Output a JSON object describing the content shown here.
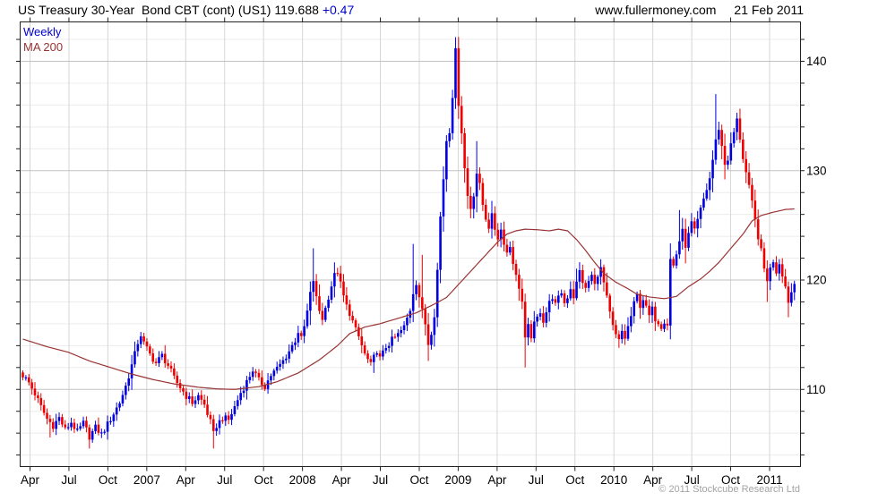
{
  "header": {
    "instrument": "US Treasury 30-Year  Bond CBT (cont) (US1)",
    "last_price": "119.688",
    "change": "+0.47",
    "website": "www.fullermoney.com",
    "date": "21 Feb 2011"
  },
  "legend": {
    "series1": "Weekly",
    "series2": "MA 200"
  },
  "footer": {
    "copyright": "© 2011 Stockcube Research Ltd"
  },
  "colors": {
    "up": "#0000e0",
    "down": "#ee0000",
    "ma": "#993333",
    "grid_minor": "#ececec",
    "grid_major": "#c2c2c2",
    "grid_vert": "#d6d6d6",
    "border": "#222222",
    "tick": "#222222",
    "label": "#000000",
    "change_text": "#0000cc",
    "copyright_text": "#a3a3a3"
  },
  "chart_data": {
    "type": "candlestick",
    "title": "US Treasury 30-Year Bond CBT (cont) (US1)",
    "timeframe": "Weekly",
    "overlay": "MA 200",
    "last_price": 119.688,
    "change": 0.47,
    "as_of": "21 Feb 2011",
    "x_labels": [
      "Apr",
      "Jul",
      "Oct",
      "2007",
      "Apr",
      "Jul",
      "Oct",
      "2008",
      "Apr",
      "Jul",
      "Oct",
      "2009",
      "Apr",
      "Jul",
      "Oct",
      "2010",
      "Apr",
      "Jul",
      "Oct",
      "2011"
    ],
    "y_ticks": [
      110,
      120,
      130,
      140
    ],
    "y_minor_step": 2,
    "ylim": [
      103.0,
      143.5
    ],
    "weeks_total": 256,
    "noise_amp": 0.32,
    "close_path": [
      [
        0,
        111.3
      ],
      [
        2,
        110.6
      ],
      [
        4,
        109.6
      ],
      [
        6,
        108.4
      ],
      [
        8,
        107.3
      ],
      [
        10,
        106.7
      ],
      [
        12,
        107.4
      ],
      [
        14,
        106.3
      ],
      [
        16,
        107.0
      ],
      [
        18,
        106.1
      ],
      [
        20,
        106.9
      ],
      [
        22,
        105.7
      ],
      [
        24,
        106.5
      ],
      [
        26,
        105.9
      ],
      [
        28,
        106.8
      ],
      [
        30,
        107.8
      ],
      [
        32,
        108.8
      ],
      [
        34,
        110.3
      ],
      [
        36,
        112.2
      ],
      [
        37,
        113.2
      ],
      [
        38,
        114.3
      ],
      [
        39,
        115.0
      ],
      [
        40,
        114.2
      ],
      [
        42,
        113.2
      ],
      [
        44,
        112.4
      ],
      [
        46,
        113.1
      ],
      [
        48,
        112.2
      ],
      [
        50,
        111.0
      ],
      [
        52,
        110.2
      ],
      [
        54,
        109.4
      ],
      [
        56,
        108.8
      ],
      [
        58,
        109.4
      ],
      [
        60,
        108.6
      ],
      [
        62,
        107.0
      ],
      [
        63,
        105.9
      ],
      [
        64,
        106.7
      ],
      [
        66,
        107.4
      ],
      [
        68,
        107.2
      ],
      [
        70,
        108.4
      ],
      [
        72,
        109.7
      ],
      [
        74,
        110.7
      ],
      [
        76,
        111.8
      ],
      [
        78,
        110.8
      ],
      [
        80,
        110.3
      ],
      [
        82,
        111.3
      ],
      [
        84,
        111.9
      ],
      [
        86,
        112.6
      ],
      [
        88,
        113.5
      ],
      [
        90,
        114.5
      ],
      [
        91,
        115.3
      ],
      [
        92,
        114.6
      ],
      [
        93,
        115.7
      ],
      [
        94,
        117.1
      ],
      [
        95,
        118.7
      ],
      [
        96,
        120.0
      ],
      [
        97,
        118.3
      ],
      [
        98,
        117.2
      ],
      [
        99,
        116.5
      ],
      [
        100,
        117.4
      ],
      [
        101,
        118.5
      ],
      [
        102,
        119.5
      ],
      [
        103,
        120.4
      ],
      [
        104,
        120.8
      ],
      [
        105,
        119.6
      ],
      [
        106,
        118.5
      ],
      [
        107,
        117.6
      ],
      [
        108,
        117.0
      ],
      [
        109,
        116.2
      ],
      [
        110,
        115.4
      ],
      [
        111,
        114.8
      ],
      [
        112,
        114.0
      ],
      [
        113,
        113.2
      ],
      [
        114,
        112.7
      ],
      [
        115,
        112.2
      ],
      [
        116,
        112.9
      ],
      [
        117,
        113.6
      ],
      [
        118,
        112.8
      ],
      [
        119,
        113.3
      ],
      [
        120,
        113.9
      ],
      [
        122,
        114.5
      ],
      [
        124,
        115.0
      ],
      [
        126,
        115.7
      ],
      [
        128,
        117.3
      ],
      [
        129,
        118.9
      ],
      [
        130,
        119.8
      ],
      [
        131,
        118.5
      ],
      [
        132,
        117.1
      ],
      [
        133,
        116.0
      ],
      [
        134,
        114.2
      ],
      [
        135,
        115.3
      ],
      [
        136,
        116.9
      ],
      [
        137,
        120.9
      ],
      [
        138,
        125.8
      ],
      [
        139,
        129.3
      ],
      [
        140,
        132.8
      ],
      [
        141,
        133.7
      ],
      [
        142,
        136.9
      ],
      [
        143,
        140.9
      ],
      [
        144,
        136.2
      ],
      [
        145,
        133.6
      ],
      [
        146,
        130.2
      ],
      [
        147,
        127.7
      ],
      [
        148,
        126.6
      ],
      [
        149,
        127.9
      ],
      [
        150,
        129.8
      ],
      [
        151,
        128.6
      ],
      [
        152,
        126.9
      ],
      [
        153,
        125.7
      ],
      [
        154,
        124.9
      ],
      [
        155,
        125.8
      ],
      [
        156,
        124.7
      ],
      [
        157,
        123.9
      ],
      [
        158,
        124.6
      ],
      [
        159,
        123.5
      ],
      [
        160,
        122.5
      ],
      [
        161,
        123.1
      ],
      [
        162,
        121.7
      ],
      [
        163,
        120.3
      ],
      [
        164,
        119.4
      ],
      [
        165,
        118.0
      ],
      [
        166,
        114.5
      ],
      [
        167,
        115.7
      ],
      [
        168,
        114.9
      ],
      [
        169,
        115.9
      ],
      [
        170,
        116.5
      ],
      [
        171,
        117.2
      ],
      [
        172,
        116.3
      ],
      [
        173,
        117.1
      ],
      [
        174,
        117.9
      ],
      [
        175,
        118.5
      ],
      [
        176,
        117.7
      ],
      [
        177,
        118.3
      ],
      [
        178,
        118.9
      ],
      [
        179,
        117.9
      ],
      [
        180,
        118.5
      ],
      [
        181,
        119.3
      ],
      [
        182,
        118.5
      ],
      [
        183,
        119.7
      ],
      [
        184,
        120.8
      ],
      [
        185,
        119.9
      ],
      [
        186,
        119.1
      ],
      [
        187,
        119.9
      ],
      [
        188,
        120.4
      ],
      [
        189,
        119.5
      ],
      [
        190,
        120.6
      ],
      [
        191,
        121.0
      ],
      [
        192,
        119.7
      ],
      [
        193,
        118.3
      ],
      [
        194,
        116.9
      ],
      [
        195,
        115.7
      ],
      [
        196,
        114.9
      ],
      [
        197,
        114.4
      ],
      [
        198,
        115.3
      ],
      [
        199,
        114.7
      ],
      [
        200,
        115.7
      ],
      [
        201,
        116.7
      ],
      [
        202,
        117.8
      ],
      [
        203,
        118.6
      ],
      [
        204,
        117.7
      ],
      [
        205,
        118.3
      ],
      [
        206,
        117.4
      ],
      [
        207,
        116.7
      ],
      [
        208,
        117.3
      ],
      [
        209,
        116.5
      ],
      [
        210,
        116.2
      ],
      [
        211,
        115.8
      ],
      [
        212,
        116.3
      ],
      [
        213,
        116.0
      ],
      [
        214,
        121.9
      ],
      [
        215,
        121.3
      ],
      [
        216,
        122.4
      ],
      [
        217,
        123.6
      ],
      [
        218,
        124.4
      ],
      [
        219,
        123.2
      ],
      [
        220,
        124.1
      ],
      [
        221,
        125.2
      ],
      [
        222,
        124.4
      ],
      [
        223,
        125.4
      ],
      [
        224,
        126.4
      ],
      [
        225,
        127.4
      ],
      [
        226,
        128.3
      ],
      [
        227,
        129.3
      ],
      [
        228,
        131.0
      ],
      [
        229,
        132.7
      ],
      [
        230,
        133.9
      ],
      [
        231,
        132.2
      ],
      [
        232,
        130.6
      ],
      [
        233,
        131.1
      ],
      [
        234,
        132.3
      ],
      [
        235,
        133.5
      ],
      [
        236,
        134.6
      ],
      [
        237,
        133.0
      ],
      [
        238,
        131.2
      ],
      [
        239,
        129.8
      ],
      [
        240,
        128.4
      ],
      [
        241,
        127.0
      ],
      [
        242,
        125.4
      ],
      [
        243,
        124.0
      ],
      [
        244,
        122.6
      ],
      [
        245,
        121.0
      ],
      [
        246,
        120.1
      ],
      [
        247,
        121.0
      ],
      [
        248,
        121.8
      ],
      [
        249,
        120.8
      ],
      [
        250,
        121.6
      ],
      [
        251,
        120.6
      ],
      [
        252,
        119.4
      ],
      [
        253,
        118.1
      ],
      [
        254,
        118.9
      ],
      [
        255,
        119.7
      ]
    ],
    "spike_highs": {
      "96": 122.9,
      "105": 121.3,
      "129": 123.3,
      "132": 122.3,
      "143": 142.2,
      "150": 132.7,
      "191": 121.4,
      "217": 126.4,
      "229": 137.0,
      "236": 135.3
    },
    "spike_lows": {
      "9": 105.6,
      "22": 105.0,
      "63": 104.6,
      "116": 111.5,
      "134": 112.6,
      "166": 112.0,
      "197": 113.8,
      "213": 115.4,
      "246": 118.0,
      "253": 116.6
    },
    "ma200_path": [
      [
        0,
        114.6
      ],
      [
        8,
        113.9
      ],
      [
        15,
        113.4
      ],
      [
        22,
        112.6
      ],
      [
        29,
        112.0
      ],
      [
        36,
        111.4
      ],
      [
        43,
        110.9
      ],
      [
        50,
        110.5
      ],
      [
        58,
        110.2
      ],
      [
        64,
        110.05
      ],
      [
        70,
        110.0
      ],
      [
        78,
        110.25
      ],
      [
        84,
        110.7
      ],
      [
        91,
        111.5
      ],
      [
        98,
        112.7
      ],
      [
        104,
        114.0
      ],
      [
        108,
        115.1
      ],
      [
        113,
        115.7
      ],
      [
        118,
        116.0
      ],
      [
        124,
        116.5
      ],
      [
        130,
        117.0
      ],
      [
        136,
        117.8
      ],
      [
        140,
        118.4
      ],
      [
        143,
        119.3
      ],
      [
        146,
        120.2
      ],
      [
        150,
        121.4
      ],
      [
        154,
        122.6
      ],
      [
        157,
        123.5
      ],
      [
        160,
        124.2
      ],
      [
        163,
        124.5
      ],
      [
        166,
        124.65
      ],
      [
        170,
        124.6
      ],
      [
        174,
        124.5
      ],
      [
        177,
        124.65
      ],
      [
        180,
        124.5
      ],
      [
        183,
        123.7
      ],
      [
        186,
        122.7
      ],
      [
        189,
        121.6
      ],
      [
        192,
        120.6
      ],
      [
        196,
        119.8
      ],
      [
        200,
        119.2
      ],
      [
        203,
        118.7
      ],
      [
        207,
        118.45
      ],
      [
        212,
        118.3
      ],
      [
        216,
        118.5
      ],
      [
        220,
        119.4
      ],
      [
        224,
        120.1
      ],
      [
        227,
        120.8
      ],
      [
        230,
        121.6
      ],
      [
        234,
        122.9
      ],
      [
        238,
        124.2
      ],
      [
        241,
        125.4
      ],
      [
        244,
        125.9
      ],
      [
        248,
        126.2
      ],
      [
        252,
        126.45
      ],
      [
        255,
        126.5
      ]
    ],
    "legend": [
      "Weekly",
      "MA 200"
    ],
    "legend_position": "top-left",
    "grid": true
  }
}
